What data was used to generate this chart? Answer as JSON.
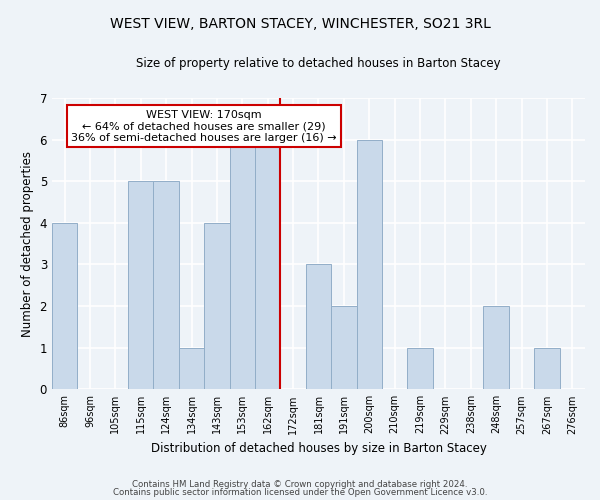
{
  "title": "WEST VIEW, BARTON STACEY, WINCHESTER, SO21 3RL",
  "subtitle": "Size of property relative to detached houses in Barton Stacey",
  "xlabel": "Distribution of detached houses by size in Barton Stacey",
  "ylabel": "Number of detached properties",
  "bin_labels": [
    "86sqm",
    "96sqm",
    "105sqm",
    "115sqm",
    "124sqm",
    "134sqm",
    "143sqm",
    "153sqm",
    "162sqm",
    "172sqm",
    "181sqm",
    "191sqm",
    "200sqm",
    "210sqm",
    "219sqm",
    "229sqm",
    "238sqm",
    "248sqm",
    "257sqm",
    "267sqm",
    "276sqm"
  ],
  "bar_values": [
    4,
    0,
    0,
    5,
    5,
    1,
    4,
    6,
    6,
    0,
    3,
    2,
    6,
    0,
    1,
    0,
    0,
    2,
    0,
    1,
    0
  ],
  "bar_color": "#c9d9ea",
  "bar_edge_color": "#92aec8",
  "vline_x_idx": 8,
  "vline_color": "#cc0000",
  "annotation_title": "WEST VIEW: 170sqm",
  "annotation_line1": "← 64% of detached houses are smaller (29)",
  "annotation_line2": "36% of semi-detached houses are larger (16) →",
  "annotation_box_color": "#ffffff",
  "annotation_box_edge": "#cc0000",
  "ylim": [
    0,
    7
  ],
  "yticks": [
    0,
    1,
    2,
    3,
    4,
    5,
    6,
    7
  ],
  "footer1": "Contains HM Land Registry data © Crown copyright and database right 2024.",
  "footer2": "Contains public sector information licensed under the Open Government Licence v3.0.",
  "bg_color": "#eef3f8",
  "plot_bg_color": "#eef3f8",
  "figsize": [
    6.0,
    5.0
  ],
  "dpi": 100
}
